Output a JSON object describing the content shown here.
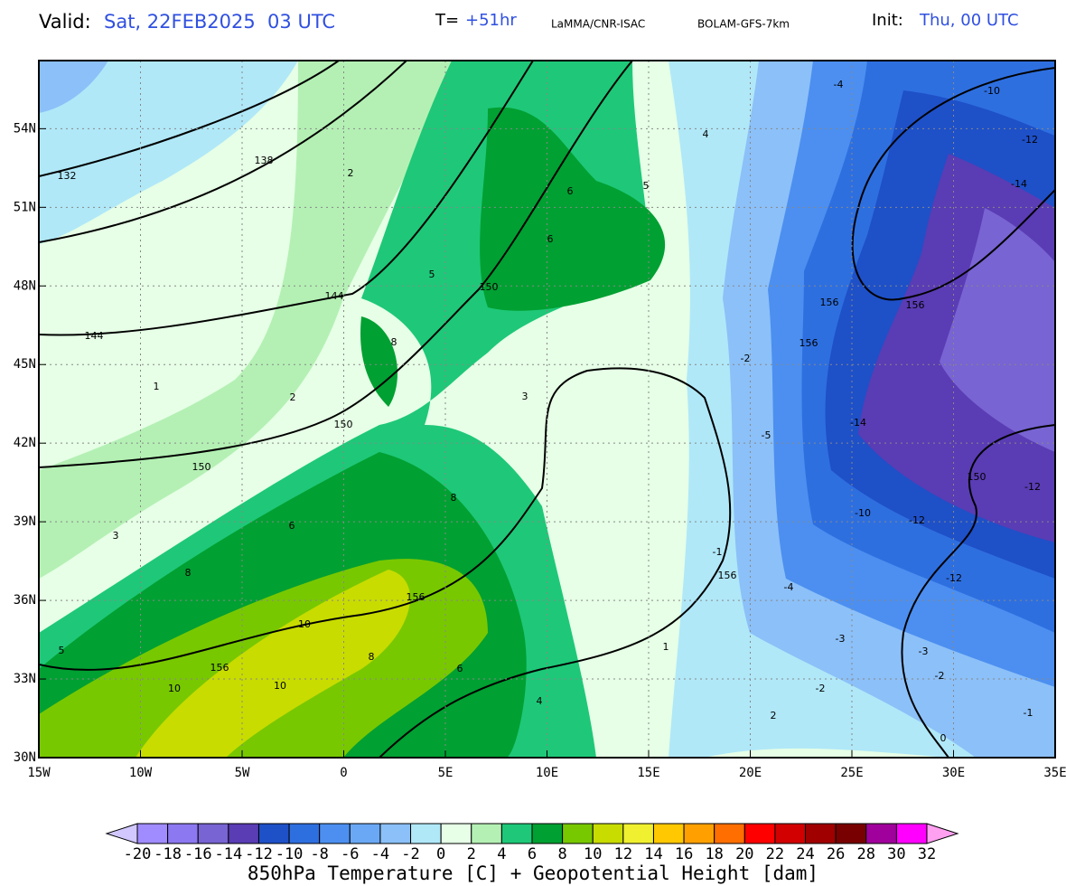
{
  "header": {
    "valid_label": "Valid:",
    "valid_time": "Sat, 22FEB2025  03 UTC",
    "t_label": "T=",
    "t_value": "+51hr",
    "source": "LaMMA/CNR-ISAC",
    "model": "BOLAM-GFS-7km",
    "init_label": "Init:",
    "init_time": "Thu, 00 UTC"
  },
  "map": {
    "xlim": [
      -15,
      35
    ],
    "ylim": [
      30,
      56.6
    ],
    "xticks": [
      {
        "value": -15,
        "label": "15W"
      },
      {
        "value": -10,
        "label": "10W"
      },
      {
        "value": -5,
        "label": "5W"
      },
      0,
      {
        "value": 5,
        "label": "5E"
      },
      {
        "value": 10,
        "label": "10E"
      },
      {
        "value": 15,
        "label": "15E"
      },
      {
        "value": 20,
        "label": "20E"
      },
      {
        "value": 25,
        "label": "25E"
      },
      {
        "value": 30,
        "label": "30E"
      },
      {
        "value": 35,
        "label": "35E"
      }
    ],
    "yticks": [
      {
        "value": 30,
        "label": "30N"
      },
      {
        "value": 33,
        "label": "33N"
      },
      {
        "value": 36,
        "label": "36N"
      },
      {
        "value": 39,
        "label": "39N"
      },
      {
        "value": 42,
        "label": "42N"
      },
      {
        "value": 45,
        "label": "45N"
      },
      {
        "value": 48,
        "label": "48N"
      },
      {
        "value": 51,
        "label": "51N"
      },
      {
        "value": 54,
        "label": "54N"
      }
    ],
    "grid": true,
    "height_labels": [
      132,
      138,
      144,
      144,
      150,
      150,
      150,
      150,
      156,
      156,
      156,
      156,
      156,
      156
    ],
    "temp_labels": [
      -4,
      -10,
      -12,
      -14,
      -12,
      -14,
      -12,
      -10,
      -12,
      -5,
      -4,
      -3,
      -3,
      -2,
      -2,
      -1,
      4,
      5,
      6,
      6,
      5,
      8,
      6,
      8,
      10,
      10,
      8,
      6,
      2,
      3,
      2,
      1,
      0,
      1,
      2,
      -2,
      -1,
      4,
      5,
      3,
      8,
      10
    ]
  },
  "colorbar": {
    "labels": [
      -20,
      -18,
      -16,
      -14,
      -12,
      -10,
      -8,
      -6,
      -4,
      -2,
      0,
      2,
      4,
      6,
      8,
      10,
      12,
      14,
      16,
      18,
      20,
      22,
      24,
      26,
      28,
      30,
      32
    ],
    "colors": [
      "#a08cff",
      "#8c78f0",
      "#7864d2",
      "#5a3cb4",
      "#1e50c8",
      "#2e6fe0",
      "#4c8ff0",
      "#6aa8f5",
      "#8cc0f8",
      "#b0e8f8",
      "#e6ffe6",
      "#b4f0b4",
      "#1ec878",
      "#00a032",
      "#78c800",
      "#c8dc00",
      "#f0f030",
      "#ffc800",
      "#ffa000",
      "#ff6e00",
      "#ff0000",
      "#d20000",
      "#a00000",
      "#780000",
      "#a0009b",
      "#ff00ff"
    ],
    "under_color": "#d2c8ff",
    "over_color": "#ffa0f0",
    "title": "850hPa Temperature [C] + Geopotential Height [dam]"
  }
}
